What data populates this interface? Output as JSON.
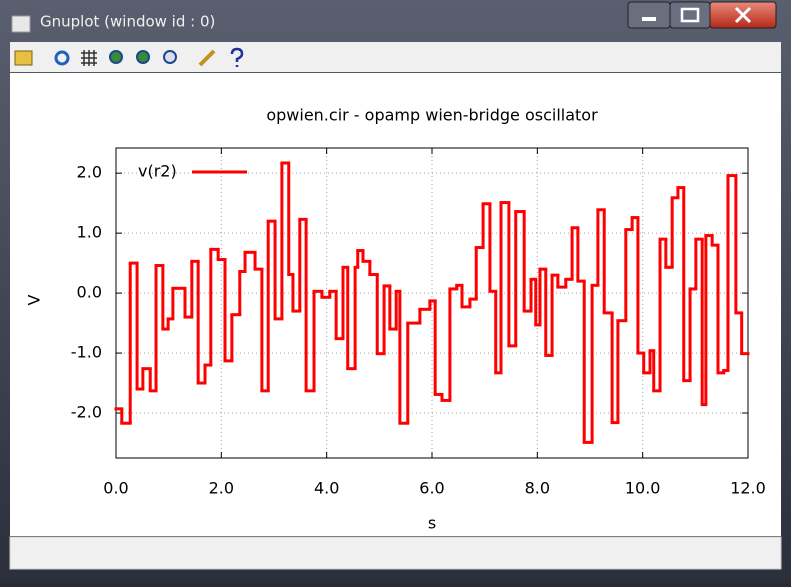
{
  "window": {
    "title": "Gnuplot (window id : 0)"
  },
  "chart_data": {
    "type": "step",
    "title": "opwien.cir - opamp wien-bridge oscillator",
    "x_label": "s",
    "y_label": "V",
    "x": [
      0,
      0.11,
      0.27,
      0.4,
      0.51,
      0.65,
      0.76,
      0.89,
      0.99,
      1.08,
      1.31,
      1.44,
      1.56,
      1.69,
      1.8,
      1.94,
      2.07,
      2.2,
      2.35,
      2.45,
      2.64,
      2.77,
      2.89,
      3.02,
      3.15,
      3.28,
      3.36,
      3.49,
      3.61,
      3.76,
      3.91,
      4.06,
      4.18,
      4.31,
      4.4,
      4.54,
      4.59,
      4.69,
      4.82,
      4.96,
      5.09,
      5.2,
      5.32,
      5.39,
      5.54,
      5.77,
      5.96,
      6.06,
      6.19,
      6.34,
      6.47,
      6.57,
      6.72,
      6.84,
      6.97,
      7.1,
      7.21,
      7.31,
      7.46,
      7.59,
      7.75,
      7.88,
      7.97,
      8.05,
      8.16,
      8.28,
      8.39,
      8.54,
      8.66,
      8.77,
      8.89,
      9.04,
      9.15,
      9.27,
      9.42,
      9.53,
      9.68,
      9.8,
      9.91,
      10.02,
      10.14,
      10.21,
      10.33,
      10.44,
      10.56,
      10.67,
      10.78,
      10.9,
      11.01,
      11.13,
      11.2,
      11.32,
      11.43,
      11.54,
      11.62,
      11.77,
      11.88
    ],
    "series": [
      {
        "name": "v(r2)",
        "color": "#ff0000",
        "values": [
          -1.93,
          -2.17,
          0.5,
          -1.6,
          -1.26,
          -1.63,
          0.46,
          -0.6,
          -0.43,
          0.08,
          -0.4,
          0.53,
          -1.5,
          -1.2,
          0.73,
          0.56,
          -1.13,
          -0.36,
          0.36,
          0.68,
          0.4,
          -1.63,
          1.2,
          -0.43,
          2.17,
          0.31,
          -0.3,
          1.23,
          -1.63,
          0.03,
          -0.07,
          0.03,
          -0.76,
          0.43,
          -1.26,
          0.43,
          0.71,
          0.53,
          0.31,
          -1.01,
          0.12,
          -0.6,
          0.03,
          -2.17,
          -0.5,
          -0.27,
          -0.13,
          -1.69,
          -1.79,
          0.07,
          0.13,
          -0.23,
          -0.1,
          0.76,
          1.49,
          0.03,
          -1.33,
          1.51,
          -0.88,
          1.36,
          -0.3,
          0.23,
          -0.53,
          0.4,
          -1.04,
          0.3,
          0.1,
          0.23,
          1.09,
          0.2,
          -2.49,
          0.13,
          1.39,
          -0.33,
          -2.16,
          -0.46,
          1.06,
          1.26,
          -1.0,
          -1.33,
          -0.96,
          -1.63,
          0.9,
          0.43,
          1.59,
          1.76,
          -1.46,
          0.07,
          0.9,
          -1.86,
          0.96,
          0.8,
          -1.33,
          -1.29,
          1.96,
          -0.33,
          -1.01
        ]
      }
    ],
    "xlim": [
      0,
      12
    ],
    "ylim": [
      -2.75,
      2.42
    ],
    "xticks": [
      {
        "value": 0,
        "label": "0.0"
      },
      {
        "value": 2,
        "label": "2.0"
      },
      {
        "value": 4,
        "label": "4.0"
      },
      {
        "value": 6,
        "label": "6.0"
      },
      {
        "value": 8,
        "label": "8.0"
      },
      {
        "value": 10,
        "label": "10.0"
      },
      {
        "value": 12,
        "label": "12.0"
      }
    ],
    "yticks": [
      {
        "value": -2,
        "label": "-2.0"
      },
      {
        "value": -1,
        "label": "-1.0"
      },
      {
        "value": 0,
        "label": "0.0"
      },
      {
        "value": 1,
        "label": "1.0"
      },
      {
        "value": 2,
        "label": "2.0"
      }
    ],
    "grid": true,
    "legend": "upper left"
  }
}
